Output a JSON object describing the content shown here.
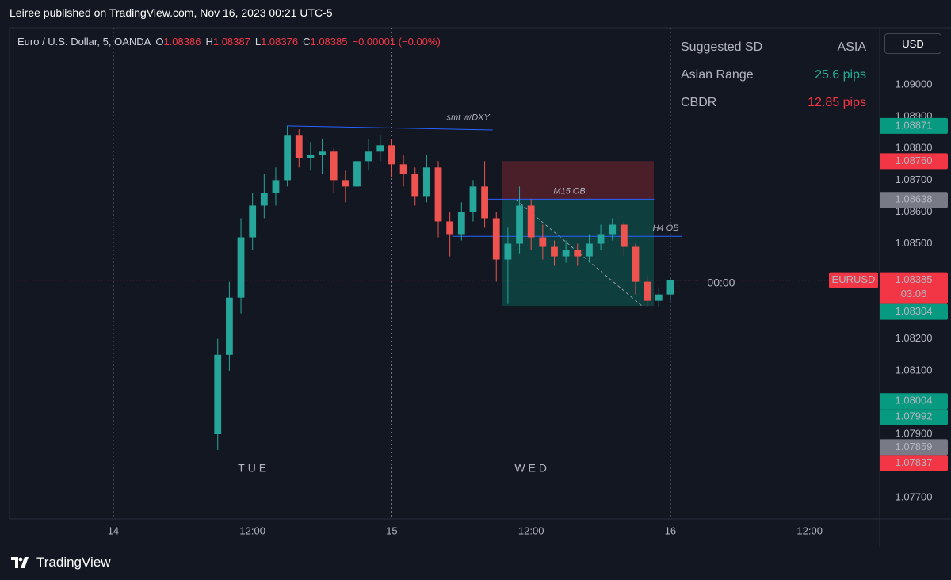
{
  "header": "Leiree published on TradingView.com, Nov 16, 2023 00:21 UTC-5",
  "footer": "TradingView",
  "chart_data": {
    "type": "candlestick",
    "symbol": "Euro / U.S. Dollar, 5, OANDA",
    "ohlc_legend": {
      "labels": [
        "O",
        "H",
        "L",
        "C"
      ],
      "values": [
        1.08386,
        1.08387,
        1.08376,
        1.08385
      ],
      "change": "−0.00001 (−0.00%)"
    },
    "currency": "USD",
    "up_color": "#26a69a",
    "down_color": "#ef5350",
    "x": [
      9,
      10,
      11,
      12,
      13,
      14,
      15,
      16,
      17,
      18,
      19,
      20,
      21,
      22,
      23,
      24,
      25,
      26,
      27,
      28,
      29,
      30,
      31,
      32,
      33,
      34,
      35,
      36,
      37,
      38,
      39,
      40,
      41,
      42,
      43,
      44,
      45,
      46,
      47,
      48
    ],
    "open": [
      1.079,
      1.0815,
      1.0833,
      1.0852,
      1.0862,
      1.0866,
      1.087,
      1.0884,
      1.0877,
      1.0878,
      1.0879,
      1.087,
      1.0868,
      1.0876,
      1.0879,
      1.0881,
      1.0875,
      1.0872,
      1.0865,
      1.0874,
      1.0857,
      1.0853,
      1.086,
      1.0868,
      1.0858,
      1.0845,
      1.085,
      1.0862,
      1.0852,
      1.0849,
      1.0846,
      1.0848,
      1.0846,
      1.085,
      1.0853,
      1.0856,
      1.0849,
      1.0838,
      1.0832,
      1.0834
    ],
    "high": [
      1.082,
      1.0838,
      1.0858,
      1.0866,
      1.0872,
      1.0874,
      1.0887,
      1.0886,
      1.0882,
      1.0883,
      1.088,
      1.0873,
      1.0879,
      1.0883,
      1.0884,
      1.0883,
      1.0878,
      1.0874,
      1.0878,
      1.0876,
      1.086,
      1.0863,
      1.087,
      1.0876,
      1.086,
      1.0855,
      1.0868,
      1.0864,
      1.0856,
      1.0851,
      1.0851,
      1.085,
      1.0853,
      1.0856,
      1.0858,
      1.0857,
      1.085,
      1.084,
      1.0836,
      1.0839
    ],
    "low": [
      1.0785,
      1.081,
      1.0828,
      1.0848,
      1.0858,
      1.0862,
      1.0868,
      1.0874,
      1.0873,
      1.0872,
      1.0866,
      1.0863,
      1.0866,
      1.0873,
      1.0876,
      1.0871,
      1.0868,
      1.0862,
      1.0863,
      1.0852,
      1.0846,
      1.0851,
      1.0857,
      1.0855,
      1.0838,
      1.0831,
      1.0847,
      1.0848,
      1.0845,
      1.0843,
      1.0844,
      1.0843,
      1.0844,
      1.0848,
      1.0851,
      1.0846,
      1.0834,
      1.083,
      1.083,
      1.0832
    ],
    "close": [
      1.0815,
      1.0833,
      1.0852,
      1.0862,
      1.0866,
      1.087,
      1.0884,
      1.0877,
      1.0878,
      1.0879,
      1.087,
      1.0868,
      1.0876,
      1.0879,
      1.0881,
      1.0875,
      1.0872,
      1.0865,
      1.0874,
      1.0857,
      1.0853,
      1.086,
      1.0868,
      1.0858,
      1.0845,
      1.085,
      1.0862,
      1.0852,
      1.0849,
      1.0846,
      1.0848,
      1.0846,
      1.085,
      1.0853,
      1.0856,
      1.0849,
      1.0838,
      1.0832,
      1.0834,
      1.08385
    ],
    "xlim": [
      -8.94,
      66.03
    ],
    "xticks": [
      {
        "value": 0,
        "label": "14"
      },
      {
        "value": 12,
        "label": "12:00"
      },
      {
        "value": 24,
        "label": "15"
      },
      {
        "value": 36,
        "label": "12:00"
      },
      {
        "value": 48,
        "label": "16"
      },
      {
        "value": 60,
        "label": "12:00"
      }
    ],
    "ylim": [
      1.07633,
      1.0918
    ],
    "yticks": [
      {
        "value": 1.09,
        "label": "1.09000"
      },
      {
        "value": 1.089,
        "label": "1.08900"
      },
      {
        "value": 1.088,
        "label": "1.08800"
      },
      {
        "value": 1.087,
        "label": "1.08700"
      },
      {
        "value": 1.086,
        "label": "1.08600"
      },
      {
        "value": 1.085,
        "label": "1.08500"
      },
      {
        "value": 1.082,
        "label": "1.08200"
      },
      {
        "value": 1.081,
        "label": "1.08100"
      },
      {
        "value": 1.079,
        "label": "1.07900"
      },
      {
        "value": 1.077,
        "label": "1.07700"
      }
    ],
    "day_labels": [
      {
        "x": 12.1,
        "label": "TUE"
      },
      {
        "x": 36.1,
        "label": "WED"
      }
    ],
    "last_price": {
      "value": 1.08385,
      "symbol": "EURUSD",
      "countdown": "03:06",
      "time": "00:00",
      "color": "#f23645"
    },
    "price_labels": [
      {
        "value": 1.08871,
        "color": "#089981"
      },
      {
        "value": 1.0876,
        "label": "1.08760",
        "color": "#f23645"
      },
      {
        "value": 1.08638,
        "color": "#787b86"
      },
      {
        "value": 1.08304,
        "color": "#089981"
      },
      {
        "value": 1.08004,
        "color": "#089981"
      },
      {
        "value": 1.07992,
        "color": "#089981"
      },
      {
        "value": 1.07859,
        "color": "#787b86"
      },
      {
        "value": 1.07837,
        "color": "#f23645"
      }
    ],
    "drawings": [
      {
        "kind": "short_position",
        "x": [
          33.46,
          46.57
        ],
        "entry": 1.08638,
        "stop": 1.0876,
        "target": 1.08304
      },
      {
        "kind": "trendline",
        "x": [
          14.95,
          32.7
        ],
        "y": [
          1.08871,
          1.08858
        ],
        "color": "#2962ff",
        "label": "smt w/DXY",
        "label_anchor": "end"
      },
      {
        "kind": "trendline",
        "x": [
          32.0,
          46.6
        ],
        "y": [
          1.0864,
          1.0864
        ],
        "color": "#2962ff",
        "label": "M15 OB",
        "label_anchor": "middle"
      },
      {
        "kind": "trendline",
        "x": [
          29.2,
          49.0
        ],
        "y": [
          1.08523,
          1.08523
        ],
        "color": "#2962ff",
        "label": "H4 OB",
        "label_anchor": "end"
      }
    ],
    "info_table": {
      "rows": [
        [
          "Suggested SD",
          "ASIA"
        ],
        [
          "Asian Range",
          "25.6 pips"
        ],
        [
          "CBDR",
          "12.85 pips"
        ]
      ],
      "value_colors": [
        "#b2b5be",
        "#22ab94",
        "#f23645"
      ]
    }
  }
}
